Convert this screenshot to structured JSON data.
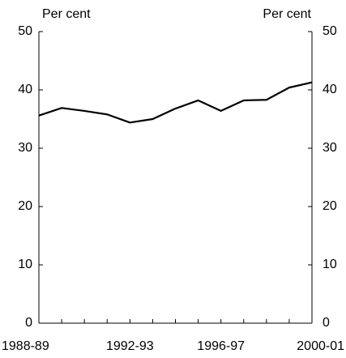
{
  "chart_data": {
    "type": "line",
    "y_label": "Per cent",
    "y2_label": "Per cent",
    "categories": [
      "1988-89",
      null,
      null,
      null,
      "1992-93",
      null,
      null,
      null,
      "1996-97",
      null,
      null,
      null,
      "2000-01"
    ],
    "series": [
      {
        "color": "#000000",
        "values": [
          35.6,
          36.9,
          36.4,
          35.8,
          34.4,
          35.0,
          36.8,
          38.2,
          36.4,
          38.2,
          38.3,
          40.4,
          41.3
        ]
      }
    ],
    "ylim": [
      0,
      50
    ],
    "yticks": [
      0,
      10,
      20,
      30,
      40,
      50
    ],
    "y2lim": [
      0,
      50
    ],
    "y2ticks": [
      0,
      10,
      20,
      30,
      40,
      50
    ],
    "grid": false
  }
}
